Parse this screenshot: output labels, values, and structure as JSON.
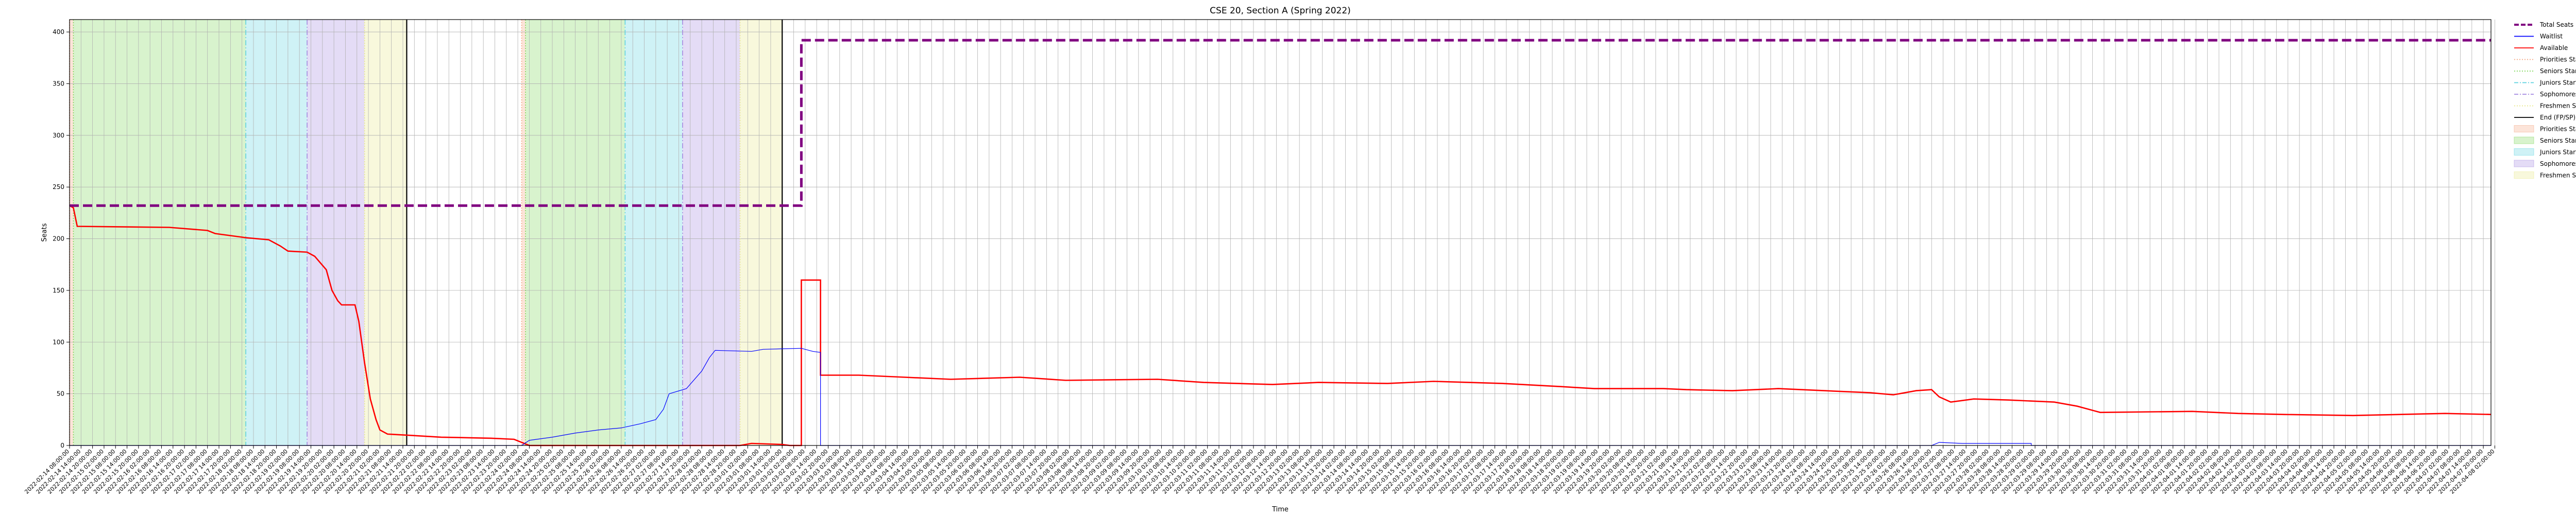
{
  "chart_data": {
    "type": "line",
    "title": "CSE 20, Section A (Spring 2022)",
    "xlabel": "Time",
    "ylabel": "Seats",
    "ylim": [
      0,
      412
    ],
    "yticks": [
      0,
      50,
      100,
      150,
      200,
      250,
      300,
      350,
      400
    ],
    "grid": true,
    "legend_placement": "outside-top-right",
    "x_time_range": [
      "2022-02-14 08:00",
      "2022-04-08 00:00"
    ],
    "x_tick_step_hours": 6,
    "x_tick_count": 212,
    "colors": {
      "total": "#800080",
      "waitlist": "#0000ff",
      "available": "#ff0000",
      "priorities": "#f4a582",
      "seniors": "#7fd65a",
      "juniors": "#5fd3e0",
      "sophomores": "#a58ae0",
      "freshmen": "#e8e88a",
      "end": "#000000"
    },
    "series": [
      {
        "name": "Total Seats",
        "points": [
          [
            "2022-02-14 08:00",
            232
          ],
          [
            "2022-03-02 06:00",
            232
          ],
          [
            "2022-03-02 06:00",
            392
          ],
          [
            "2022-04-08 00:00",
            392
          ]
        ]
      },
      {
        "name": "Waitlist",
        "points": [
          [
            "2022-02-14 08:00",
            0
          ],
          [
            "2022-02-24 04:00",
            0
          ],
          [
            "2022-02-24 08:00",
            5
          ],
          [
            "2022-02-24 20:00",
            8
          ],
          [
            "2022-02-25 08:00",
            12
          ],
          [
            "2022-02-25 20:00",
            15
          ],
          [
            "2022-02-26 08:00",
            17
          ],
          [
            "2022-02-26 18:00",
            21
          ],
          [
            "2022-02-27 02:00",
            25
          ],
          [
            "2022-02-27 06:00",
            35
          ],
          [
            "2022-02-27 09:00",
            50
          ],
          [
            "2022-02-27 18:00",
            55
          ],
          [
            "2022-02-28 02:00",
            72
          ],
          [
            "2022-02-28 06:00",
            85
          ],
          [
            "2022-02-28 09:00",
            92
          ],
          [
            "2022-03-01 04:00",
            91
          ],
          [
            "2022-03-01 10:00",
            93
          ],
          [
            "2022-03-02 06:00",
            94
          ],
          [
            "2022-03-02 12:00",
            91
          ],
          [
            "2022-03-02 16:00",
            90
          ],
          [
            "2022-03-02 16:00",
            0
          ],
          [
            "2022-03-26 20:00",
            0
          ],
          [
            "2022-03-27 00:00",
            3
          ],
          [
            "2022-03-27 12:00",
            2
          ],
          [
            "2022-03-29 00:00",
            2
          ],
          [
            "2022-03-29 00:00",
            0
          ],
          [
            "2022-04-08 00:00",
            0
          ]
        ]
      },
      {
        "name": "Available",
        "points": [
          [
            "2022-02-14 08:00",
            232
          ],
          [
            "2022-02-14 10:00",
            230
          ],
          [
            "2022-02-14 12:00",
            212
          ],
          [
            "2022-02-16 12:00",
            211
          ],
          [
            "2022-02-17 08:00",
            208
          ],
          [
            "2022-02-17 12:00",
            205
          ],
          [
            "2022-02-17 20:00",
            203
          ],
          [
            "2022-02-18 04:00",
            201
          ],
          [
            "2022-02-18 16:00",
            199
          ],
          [
            "2022-02-18 22:00",
            193
          ],
          [
            "2022-02-19 02:00",
            188
          ],
          [
            "2022-02-19 12:00",
            187
          ],
          [
            "2022-02-19 16:00",
            183
          ],
          [
            "2022-02-19 22:00",
            170
          ],
          [
            "2022-02-20 01:00",
            150
          ],
          [
            "2022-02-20 04:00",
            140
          ],
          [
            "2022-02-20 06:00",
            136
          ],
          [
            "2022-02-20 13:00",
            136
          ],
          [
            "2022-02-20 15:00",
            120
          ],
          [
            "2022-02-20 18:00",
            80
          ],
          [
            "2022-02-20 21:00",
            45
          ],
          [
            "2022-02-21 00:00",
            25
          ],
          [
            "2022-02-21 02:00",
            15
          ],
          [
            "2022-02-21 06:00",
            11
          ],
          [
            "2022-02-21 16:00",
            10
          ],
          [
            "2022-02-22 10:00",
            8
          ],
          [
            "2022-02-23 12:00",
            7
          ],
          [
            "2022-02-24 00:00",
            6
          ],
          [
            "2022-02-24 08:00",
            0
          ],
          [
            "2022-02-28 22:00",
            0
          ],
          [
            "2022-03-01 04:00",
            2
          ],
          [
            "2022-03-01 20:00",
            1
          ],
          [
            "2022-03-02 00:00",
            0
          ],
          [
            "2022-03-02 06:00",
            0
          ],
          [
            "2022-03-02 06:00",
            160
          ],
          [
            "2022-03-02 16:00",
            160
          ],
          [
            "2022-03-02 16:00",
            68
          ],
          [
            "2022-03-03 12:00",
            68
          ],
          [
            "2022-03-04 12:00",
            66
          ],
          [
            "2022-03-05 12:00",
            64
          ],
          [
            "2022-03-07 00:00",
            66
          ],
          [
            "2022-03-08 00:00",
            63
          ],
          [
            "2022-03-10 00:00",
            64
          ],
          [
            "2022-03-11 00:00",
            61
          ],
          [
            "2022-03-12 12:00",
            59
          ],
          [
            "2022-03-13 12:00",
            61
          ],
          [
            "2022-03-15 00:00",
            60
          ],
          [
            "2022-03-16 00:00",
            62
          ],
          [
            "2022-03-17 12:00",
            60
          ],
          [
            "2022-03-18 18:00",
            57
          ],
          [
            "2022-03-19 12:00",
            55
          ],
          [
            "2022-03-21 00:00",
            55
          ],
          [
            "2022-03-21 12:00",
            54
          ],
          [
            "2022-03-22 12:00",
            53
          ],
          [
            "2022-03-23 12:00",
            55
          ],
          [
            "2022-03-24 12:00",
            53
          ],
          [
            "2022-03-25 12:00",
            51
          ],
          [
            "2022-03-26 00:00",
            49
          ],
          [
            "2022-03-26 12:00",
            53
          ],
          [
            "2022-03-26 20:00",
            54
          ],
          [
            "2022-03-27 00:00",
            47
          ],
          [
            "2022-03-27 06:00",
            42
          ],
          [
            "2022-03-27 18:00",
            45
          ],
          [
            "2022-03-28 12:00",
            44
          ],
          [
            "2022-03-29 12:00",
            42
          ],
          [
            "2022-03-30 00:00",
            38
          ],
          [
            "2022-03-30 12:00",
            32
          ],
          [
            "2022-04-01 12:00",
            33
          ],
          [
            "2022-04-02 12:00",
            31
          ],
          [
            "2022-04-03 12:00",
            30
          ],
          [
            "2022-04-05 00:00",
            29
          ],
          [
            "2022-04-06 00:00",
            30
          ],
          [
            "2022-04-07 00:00",
            31
          ],
          [
            "2022-04-08 00:00",
            30
          ]
        ]
      }
    ],
    "period_spans": [
      {
        "period": "Priorities",
        "start": "2022-02-14 08:00",
        "end": "2022-02-14 10:00"
      },
      {
        "period": "Seniors",
        "start": "2022-02-14 10:00",
        "end": "2022-02-18 04:00"
      },
      {
        "period": "Juniors",
        "start": "2022-02-18 04:00",
        "end": "2022-02-19 12:00"
      },
      {
        "period": "Sophomores",
        "start": "2022-02-19 12:00",
        "end": "2022-02-20 18:00"
      },
      {
        "period": "Freshmen",
        "start": "2022-02-20 18:00",
        "end": "2022-02-21 16:00"
      },
      {
        "period": "Priorities",
        "start": "2022-02-24 04:00",
        "end": "2022-02-24 06:00"
      },
      {
        "period": "Seniors",
        "start": "2022-02-24 06:00",
        "end": "2022-02-26 10:00"
      },
      {
        "period": "Juniors",
        "start": "2022-02-26 10:00",
        "end": "2022-02-27 16:00"
      },
      {
        "period": "Sophomores",
        "start": "2022-02-27 16:00",
        "end": "2022-02-28 22:00"
      },
      {
        "period": "Freshmen",
        "start": "2022-02-28 22:00",
        "end": "2022-03-01 20:00"
      }
    ],
    "legend": [
      {
        "label": "Total Seats",
        "kind": "line",
        "color": "#800080",
        "dash": "dashed",
        "thick": true
      },
      {
        "label": "Waitlist",
        "kind": "line",
        "color": "#0000ff"
      },
      {
        "label": "Available",
        "kind": "line",
        "color": "#ff0000"
      },
      {
        "label": "Priorities Start",
        "kind": "line",
        "color": "#f4a582",
        "dash": "dotted"
      },
      {
        "label": "Seniors Start",
        "kind": "line",
        "color": "#7fd65a",
        "dash": "dotted"
      },
      {
        "label": "Juniors Start",
        "kind": "line",
        "color": "#5fd3e0",
        "dash": "dashdot"
      },
      {
        "label": "Sophomores Start",
        "kind": "line",
        "color": "#a58ae0",
        "dash": "dashdot"
      },
      {
        "label": "Freshmen Start",
        "kind": "line",
        "color": "#e8e88a",
        "dash": "dotted"
      },
      {
        "label": "End (FP/SP)",
        "kind": "line",
        "color": "#000000"
      },
      {
        "label": "Priorities Start",
        "kind": "patch",
        "color": "#f4a582"
      },
      {
        "label": "Seniors Start",
        "kind": "patch",
        "color": "#7fd65a"
      },
      {
        "label": "Juniors Start",
        "kind": "patch",
        "color": "#5fd3e0"
      },
      {
        "label": "Sophomores Start",
        "kind": "patch",
        "color": "#a58ae0"
      },
      {
        "label": "Freshmen Start",
        "kind": "patch",
        "color": "#e8e88a"
      }
    ]
  }
}
